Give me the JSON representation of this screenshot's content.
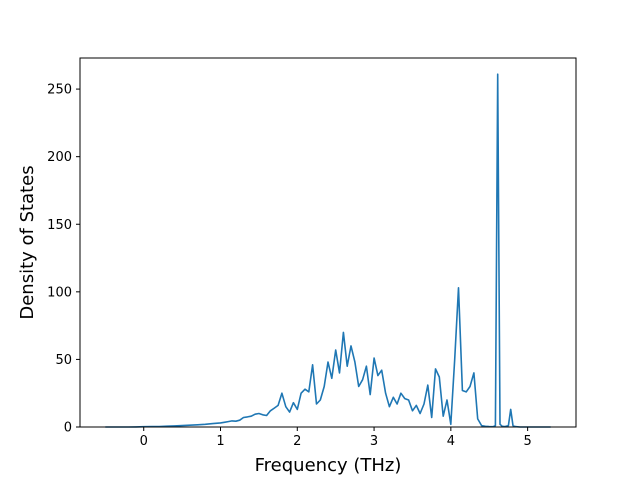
{
  "chart_data": {
    "type": "line",
    "xlabel": "Frequency (THz)",
    "ylabel": "Density of States",
    "xlim": [
      -0.83,
      5.63
    ],
    "ylim": [
      0,
      273
    ],
    "xticks": [
      0,
      1,
      2,
      3,
      4,
      5
    ],
    "yticks": [
      0,
      50,
      100,
      150,
      200,
      250
    ],
    "grid": false,
    "series": [
      {
        "color": "#1f77b4",
        "x": [
          -0.5,
          -0.4,
          -0.3,
          -0.2,
          -0.1,
          0.0,
          0.1,
          0.2,
          0.3,
          0.4,
          0.5,
          0.6,
          0.7,
          0.8,
          0.9,
          1.0,
          1.05,
          1.1,
          1.15,
          1.2,
          1.25,
          1.3,
          1.35,
          1.4,
          1.45,
          1.5,
          1.55,
          1.6,
          1.65,
          1.7,
          1.75,
          1.8,
          1.85,
          1.9,
          1.95,
          2.0,
          2.05,
          2.1,
          2.15,
          2.2,
          2.25,
          2.3,
          2.35,
          2.4,
          2.45,
          2.5,
          2.55,
          2.6,
          2.65,
          2.7,
          2.75,
          2.8,
          2.85,
          2.9,
          2.95,
          3.0,
          3.05,
          3.1,
          3.15,
          3.2,
          3.25,
          3.3,
          3.35,
          3.4,
          3.45,
          3.5,
          3.55,
          3.6,
          3.65,
          3.7,
          3.75,
          3.8,
          3.85,
          3.9,
          3.95,
          4.0,
          4.05,
          4.1,
          4.15,
          4.2,
          4.25,
          4.3,
          4.35,
          4.4,
          4.45,
          4.5,
          4.55,
          4.58,
          4.61,
          4.64,
          4.67,
          4.7,
          4.75,
          4.78,
          4.81,
          4.84,
          4.9,
          5.0,
          5.1,
          5.2,
          5.3
        ],
        "values": [
          0,
          0,
          0,
          0,
          0.1,
          0.2,
          0.3,
          0.4,
          0.6,
          0.8,
          1.0,
          1.3,
          1.6,
          2.0,
          2.5,
          3.0,
          3.5,
          4.0,
          4.5,
          4.3,
          5.0,
          7.0,
          7.5,
          8.0,
          9.5,
          10.0,
          9.0,
          8.5,
          12.0,
          14.0,
          16.0,
          25.0,
          15.0,
          11.0,
          18.0,
          13.0,
          25.0,
          28.0,
          26.0,
          46.0,
          17.0,
          20.0,
          30.0,
          48.0,
          36.0,
          57.0,
          40.0,
          70.0,
          45.0,
          60.0,
          48.0,
          30.0,
          35.0,
          45.0,
          24.0,
          51.0,
          38.0,
          42.0,
          25.0,
          15.0,
          22.0,
          17.0,
          25.0,
          21.0,
          20.0,
          12.0,
          16.0,
          10.0,
          17.0,
          31.0,
          7.0,
          43.0,
          37.0,
          8.0,
          20.0,
          2.0,
          50.0,
          103.0,
          27.0,
          26.0,
          30.0,
          40.0,
          6.0,
          1.0,
          0.5,
          0.3,
          0.2,
          1.0,
          261.0,
          2.0,
          0.5,
          0.3,
          1.0,
          13.0,
          1.0,
          0.3,
          0,
          0,
          0,
          0,
          0
        ]
      }
    ]
  }
}
